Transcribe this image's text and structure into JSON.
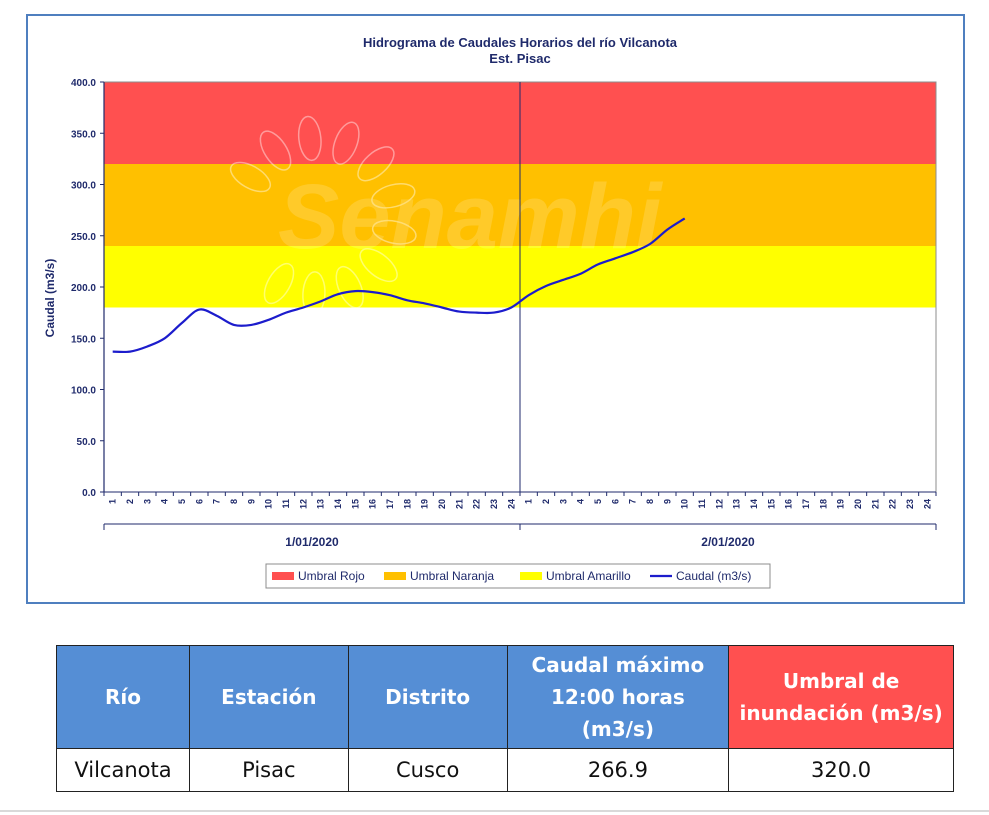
{
  "chart_data": {
    "type": "line",
    "title": "Hidrograma de Caudales Horarios del río Vilcanota",
    "subtitle": "Est. Pisac",
    "ylabel": "Caudal (m3/s)",
    "ylim": [
      0,
      400
    ],
    "yticks": [
      "0.0",
      "50.0",
      "100.0",
      "150.0",
      "200.0",
      "250.0",
      "300.0",
      "350.0",
      "400.0"
    ],
    "xticks": [
      "1",
      "2",
      "3",
      "4",
      "5",
      "6",
      "7",
      "8",
      "9",
      "10",
      "11",
      "12",
      "13",
      "14",
      "15",
      "16",
      "17",
      "18",
      "19",
      "20",
      "21",
      "22",
      "23",
      "24",
      "1",
      "2",
      "3",
      "4",
      "5",
      "6",
      "7",
      "8",
      "9",
      "10",
      "11",
      "12",
      "13",
      "14",
      "15",
      "16",
      "17",
      "18",
      "19",
      "20",
      "21",
      "22",
      "23",
      "24"
    ],
    "date_groups": [
      "1/01/2020",
      "2/01/2020"
    ],
    "thresholds": [
      {
        "name": "Umbral Rojo",
        "from": 320,
        "to": 400,
        "color": "#ff5050"
      },
      {
        "name": "Umbral Naranja",
        "from": 240,
        "to": 320,
        "color": "#ffc000"
      },
      {
        "name": "Umbral Amarillo",
        "from": 180,
        "to": 240,
        "color": "#ffff00"
      }
    ],
    "series": [
      {
        "name": "Caudal (m3/s)",
        "color": "#1c1ccc",
        "values": [
          137,
          137,
          142,
          150,
          165,
          178,
          172,
          163,
          163,
          168,
          175,
          180,
          186,
          193,
          196,
          195,
          192,
          187,
          184,
          180,
          176,
          175,
          175,
          180,
          192,
          201,
          207,
          213,
          222,
          228,
          234,
          242,
          256,
          266.9
        ]
      }
    ],
    "legend_position": "bottom",
    "watermark": "Senamhi"
  },
  "table": {
    "headers": [
      "Río",
      "Estación",
      "Distrito",
      "Caudal máximo 12:00 horas (m3/s)",
      "Umbral de inundación (m3/s)"
    ],
    "row": [
      "Vilcanota",
      "Pisac",
      "Cusco",
      "266.9",
      "320.0"
    ]
  },
  "colors": {
    "frame_border": "#4f7fbf",
    "table_header": "#558ed5",
    "table_header_alert": "#ff5050"
  }
}
